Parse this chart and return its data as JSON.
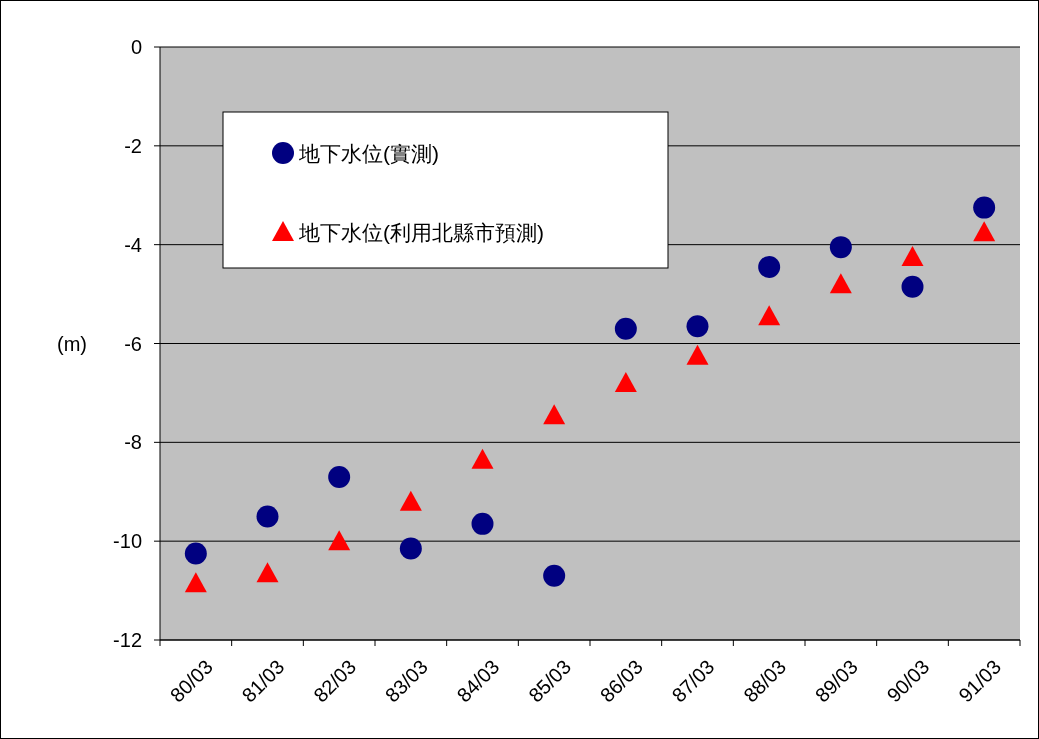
{
  "chart_data": {
    "type": "scatter",
    "ylabel": "(m)",
    "categories": [
      "80/03",
      "81/03",
      "82/03",
      "83/03",
      "84/03",
      "85/03",
      "86/03",
      "87/03",
      "88/03",
      "89/03",
      "90/03",
      "91/03"
    ],
    "series": [
      {
        "name": "地下水位(實測)",
        "color": "#000080",
        "marker": "circle",
        "values": [
          -10.25,
          -9.5,
          -8.7,
          -10.15,
          -9.65,
          -10.7,
          -5.7,
          -5.65,
          -4.45,
          -4.05,
          -4.85,
          -3.25
        ]
      },
      {
        "name": "地下水位(利用北縣市預測)",
        "color": "#ff0000",
        "marker": "triangle",
        "values": [
          -10.85,
          -10.65,
          -10.0,
          -9.2,
          -8.35,
          -7.45,
          -6.8,
          -6.25,
          -5.45,
          -4.8,
          -4.25,
          -3.75
        ]
      }
    ],
    "ylim": [
      -12,
      0
    ],
    "yticks": [
      -12,
      -10,
      -8,
      -6,
      -4,
      -2,
      0
    ],
    "grid": "y",
    "legend": "top left"
  }
}
